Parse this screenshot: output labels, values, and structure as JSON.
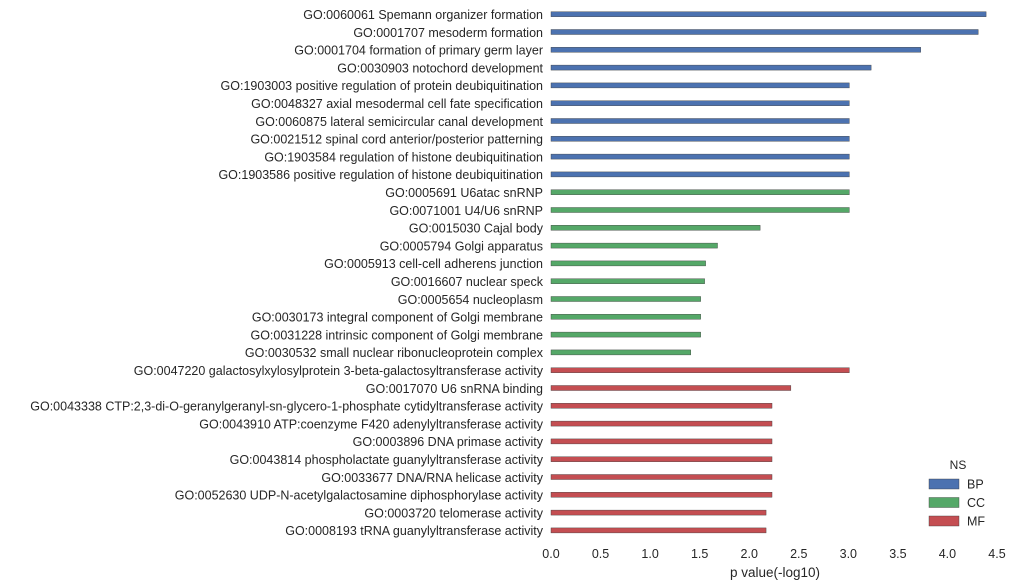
{
  "chart_data": {
    "type": "bar",
    "orientation": "horizontal",
    "xlabel": "p value(-log10)",
    "xlim": [
      0,
      4.5
    ],
    "xticks": [
      "0.0",
      "0.5",
      "1.0",
      "1.5",
      "2.0",
      "2.5",
      "3.0",
      "3.5",
      "4.0",
      "4.5"
    ],
    "grid": false,
    "legend": {
      "title": "NS",
      "placement": "bottom-right",
      "entries": [
        {
          "name": "BP",
          "color": "#4c72b0"
        },
        {
          "name": "CC",
          "color": "#55a868"
        },
        {
          "name": "MF",
          "color": "#c44e52"
        }
      ]
    },
    "bars": [
      {
        "label": "GO:0060061 Spemann organizer formation",
        "value": 4.39,
        "ns": "BP"
      },
      {
        "label": "GO:0001707 mesoderm formation",
        "value": 4.31,
        "ns": "BP"
      },
      {
        "label": "GO:0001704 formation of primary germ layer",
        "value": 3.73,
        "ns": "BP"
      },
      {
        "label": "GO:0030903 notochord development",
        "value": 3.23,
        "ns": "BP"
      },
      {
        "label": "GO:1903003 positive regulation of protein deubiquitination",
        "value": 3.01,
        "ns": "BP"
      },
      {
        "label": "GO:0048327 axial mesodermal cell fate specification",
        "value": 3.01,
        "ns": "BP"
      },
      {
        "label": "GO:0060875 lateral semicircular canal development",
        "value": 3.01,
        "ns": "BP"
      },
      {
        "label": "GO:0021512 spinal cord anterior/posterior patterning",
        "value": 3.01,
        "ns": "BP"
      },
      {
        "label": "GO:1903584 regulation of histone deubiquitination",
        "value": 3.01,
        "ns": "BP"
      },
      {
        "label": "GO:1903586 positive regulation of histone deubiquitination",
        "value": 3.01,
        "ns": "BP"
      },
      {
        "label": "GO:0005691 U6atac snRNP",
        "value": 3.01,
        "ns": "CC"
      },
      {
        "label": "GO:0071001 U4/U6 snRNP",
        "value": 3.01,
        "ns": "CC"
      },
      {
        "label": "GO:0015030 Cajal body",
        "value": 2.11,
        "ns": "CC"
      },
      {
        "label": "GO:0005794 Golgi apparatus",
        "value": 1.68,
        "ns": "CC"
      },
      {
        "label": "GO:0005913 cell-cell adherens junction",
        "value": 1.56,
        "ns": "CC"
      },
      {
        "label": "GO:0016607 nuclear speck",
        "value": 1.55,
        "ns": "CC"
      },
      {
        "label": "GO:0005654 nucleoplasm",
        "value": 1.51,
        "ns": "CC"
      },
      {
        "label": "GO:0030173 integral component of Golgi membrane",
        "value": 1.51,
        "ns": "CC"
      },
      {
        "label": "GO:0031228 intrinsic component of Golgi membrane",
        "value": 1.51,
        "ns": "CC"
      },
      {
        "label": "GO:0030532 small nuclear ribonucleoprotein complex",
        "value": 1.41,
        "ns": "CC"
      },
      {
        "label": "GO:0047220 galactosylxylosylprotein 3-beta-galactosyltransferase activity",
        "value": 3.01,
        "ns": "MF"
      },
      {
        "label": "GO:0017070 U6 snRNA binding",
        "value": 2.42,
        "ns": "MF"
      },
      {
        "label": "GO:0043338 CTP:2,3-di-O-geranylgeranyl-sn-glycero-1-phosphate cytidyltransferase activity",
        "value": 2.23,
        "ns": "MF"
      },
      {
        "label": "GO:0043910 ATP:coenzyme F420 adenylyltransferase activity",
        "value": 2.23,
        "ns": "MF"
      },
      {
        "label": "GO:0003896 DNA primase activity",
        "value": 2.23,
        "ns": "MF"
      },
      {
        "label": "GO:0043814 phospholactate guanylyltransferase activity",
        "value": 2.23,
        "ns": "MF"
      },
      {
        "label": "GO:0033677 DNA/RNA helicase activity",
        "value": 2.23,
        "ns": "MF"
      },
      {
        "label": "GO:0052630 UDP-N-acetylgalactosamine diphosphorylase activity",
        "value": 2.23,
        "ns": "MF"
      },
      {
        "label": "GO:0003720 telomerase activity",
        "value": 2.17,
        "ns": "MF"
      },
      {
        "label": "GO:0008193 tRNA guanylyltransferase activity",
        "value": 2.17,
        "ns": "MF"
      }
    ]
  }
}
